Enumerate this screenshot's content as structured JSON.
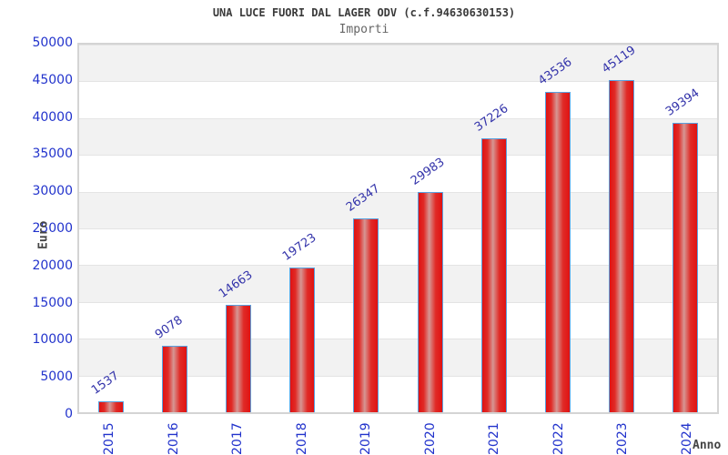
{
  "chart_data": {
    "type": "bar",
    "title": "UNA LUCE FUORI DAL LAGER ODV (c.f.94630630153)",
    "subtitle": "Importi",
    "xlabel": "Anno",
    "ylabel": "Euro",
    "categories": [
      "2015",
      "2016",
      "2017",
      "2018",
      "2019",
      "2020",
      "2021",
      "2022",
      "2023",
      "2024"
    ],
    "values": [
      1537,
      9078,
      14663,
      19723,
      26347,
      29983,
      37226,
      43536,
      45119,
      39394
    ],
    "ylim": [
      0,
      50000
    ],
    "ytick_interval": 5000,
    "ytick_labels": [
      "0",
      "5000",
      "10000",
      "15000",
      "20000",
      "25000",
      "30000",
      "35000",
      "40000",
      "45000",
      "50000"
    ],
    "legend": "none",
    "grid": "horizontal-bands",
    "colors": {
      "bar_fill": "#e01212",
      "bar_highlight": "#d69693",
      "bar_border": "#58a2e0",
      "tick_label": "#2233cc",
      "value_label": "#3333aa",
      "title": "#3a3a3a",
      "subtitle": "#666666",
      "axis_title": "#444444",
      "band": "#f2f2f2",
      "gridline": "#e4e4e4",
      "plot_border": "#d4d4d4"
    }
  }
}
